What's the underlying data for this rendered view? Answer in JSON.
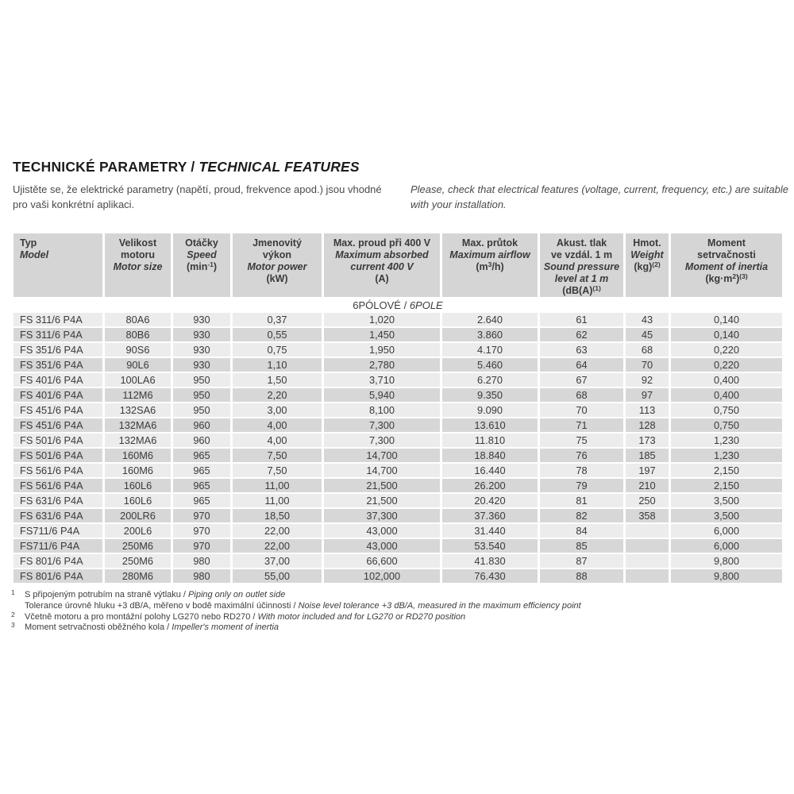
{
  "page": {
    "title": {
      "cz": "TECHNICKÉ PARAMETRY",
      "sep": " / ",
      "en": "TECHNICAL FEATURES"
    },
    "intro": {
      "cz": "Ujistěte se, že elektrické parametry (napětí, proud, frekvence apod.) jsou vhodné pro vaši konkrétní aplikaci.",
      "en": "Please, check that electrical features (voltage, current, frequency, etc.) are suitable with your installation."
    }
  },
  "colors": {
    "header_bg": "#d5d5d5",
    "row_odd_bg": "#ececec",
    "row_even_bg": "#d7d7d7",
    "text": "#3a3a3a"
  },
  "table": {
    "section": {
      "cz": "6PÓLOVÉ",
      "sep": " / ",
      "en": "6POLE"
    },
    "columns": [
      {
        "cz": [
          "Typ"
        ],
        "en": [
          "Model"
        ],
        "unit": null
      },
      {
        "cz": [
          "Velikost",
          "motoru"
        ],
        "en": [
          "Motor size"
        ],
        "unit": null
      },
      {
        "cz": [
          "Otáčky"
        ],
        "en": [
          "Speed"
        ],
        "unit": [
          [
            "(min",
            false
          ],
          [
            "-1",
            true
          ],
          [
            ")",
            false
          ]
        ]
      },
      {
        "cz": [
          "Jmenovitý",
          "výkon"
        ],
        "en": [
          "Motor power"
        ],
        "unit": [
          [
            "(kW)",
            false
          ]
        ]
      },
      {
        "cz": [
          "Max. proud při 400 V"
        ],
        "en": [
          "Maximum absorbed",
          "current 400 V"
        ],
        "unit": [
          [
            "(A)",
            false
          ]
        ]
      },
      {
        "cz": [
          "Max. průtok"
        ],
        "en": [
          "Maximum airflow"
        ],
        "unit": [
          [
            "(m",
            false
          ],
          [
            "3",
            true
          ],
          [
            "/h)",
            false
          ]
        ]
      },
      {
        "cz": [
          "Akust. tlak",
          "ve vzdál. 1 m"
        ],
        "en": [
          "Sound pressure",
          "level at 1 m"
        ],
        "unit": [
          [
            "(dB(A)",
            false
          ],
          [
            "(1)",
            true
          ]
        ]
      },
      {
        "cz": [
          "Hmot."
        ],
        "en": [
          "Weight"
        ],
        "unit": [
          [
            "(kg)",
            false
          ],
          [
            "(2)",
            true
          ]
        ]
      },
      {
        "cz": [
          "Moment",
          "setrvačnosti"
        ],
        "en": [
          "Moment of inertia"
        ],
        "unit": [
          [
            "(kg·m",
            false
          ],
          [
            "2",
            true
          ],
          [
            ")",
            false
          ],
          [
            "(3)",
            true
          ]
        ]
      }
    ],
    "rows": [
      [
        "FS 311/6 P4A",
        "80A6",
        "930",
        "0,37",
        "1,020",
        "2.640",
        "61",
        "43",
        "0,140"
      ],
      [
        "FS 311/6 P4A",
        "80B6",
        "930",
        "0,55",
        "1,450",
        "3.860",
        "62",
        "45",
        "0,140"
      ],
      [
        "FS 351/6 P4A",
        "90S6",
        "930",
        "0,75",
        "1,950",
        "4.170",
        "63",
        "68",
        "0,220"
      ],
      [
        "FS 351/6 P4A",
        "90L6",
        "930",
        "1,10",
        "2,780",
        "5.460",
        "64",
        "70",
        "0,220"
      ],
      [
        "FS 401/6 P4A",
        "100LA6",
        "950",
        "1,50",
        "3,710",
        "6.270",
        "67",
        "92",
        "0,400"
      ],
      [
        "FS 401/6 P4A",
        "112M6",
        "950",
        "2,20",
        "5,940",
        "9.350",
        "68",
        "97",
        "0,400"
      ],
      [
        "FS 451/6 P4A",
        "132SA6",
        "950",
        "3,00",
        "8,100",
        "9.090",
        "70",
        "113",
        "0,750"
      ],
      [
        "FS 451/6 P4A",
        "132MA6",
        "960",
        "4,00",
        "7,300",
        "13.610",
        "71",
        "128",
        "0,750"
      ],
      [
        "FS 501/6 P4A",
        "132MA6",
        "960",
        "4,00",
        "7,300",
        "11.810",
        "75",
        "173",
        "1,230"
      ],
      [
        "FS 501/6 P4A",
        "160M6",
        "965",
        "7,50",
        "14,700",
        "18.840",
        "76",
        "185",
        "1,230"
      ],
      [
        "FS 561/6 P4A",
        "160M6",
        "965",
        "7,50",
        "14,700",
        "16.440",
        "78",
        "197",
        "2,150"
      ],
      [
        "FS 561/6 P4A",
        "160L6",
        "965",
        "11,00",
        "21,500",
        "26.200",
        "79",
        "210",
        "2,150"
      ],
      [
        "FS 631/6 P4A",
        "160L6",
        "965",
        "11,00",
        "21,500",
        "20.420",
        "81",
        "250",
        "3,500"
      ],
      [
        "FS 631/6 P4A",
        "200LR6",
        "970",
        "18,50",
        "37,300",
        "37.360",
        "82",
        "358",
        "3,500"
      ],
      [
        "FS711/6 P4A",
        "200L6",
        "970",
        "22,00",
        "43,000",
        "31.440",
        "84",
        "",
        "6,000"
      ],
      [
        "FS711/6 P4A",
        "250M6",
        "970",
        "22,00",
        "43,000",
        "53.540",
        "85",
        "",
        "6,000"
      ],
      [
        "FS 801/6 P4A",
        "250M6",
        "980",
        "37,00",
        "66,600",
        "41.830",
        "87",
        "",
        "9,800"
      ],
      [
        "FS 801/6 P4A",
        "280M6",
        "980",
        "55,00",
        "102,000",
        "76.430",
        "88",
        "",
        "9,800"
      ]
    ]
  },
  "footnotes": [
    {
      "num": "1",
      "cz": "S připojeným potrubím na straně výtlaku",
      "sep": " / ",
      "en": "Piping only on outlet side"
    },
    {
      "num": "",
      "cz": "Tolerance úrovně hluku +3 dB/A, měřeno v bodě maximální účinnosti",
      "sep": " / ",
      "en": "Noise level tolerance +3 dB/A, measured in the maximum efficiency point"
    },
    {
      "num": "2",
      "cz": "Včetně motoru a pro montážní polohy LG270 nebo RD270",
      "sep": " / ",
      "en": "With motor included and for LG270 or RD270 position"
    },
    {
      "num": "3",
      "cz": "Moment setrvačnosti oběžného kola",
      "sep": " / ",
      "en": "Impeller's moment of inertia"
    }
  ]
}
